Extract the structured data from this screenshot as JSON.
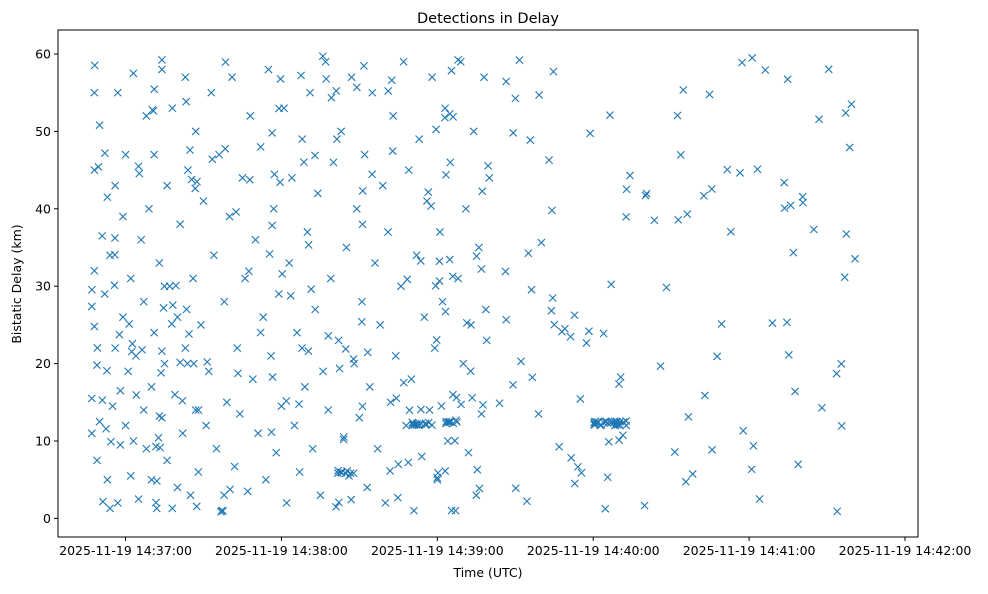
{
  "chart_data": {
    "type": "scatter",
    "title": "Detections in Delay",
    "xlabel": "Time (UTC)",
    "ylabel": "Bistatic Delay (km)",
    "x_unit": "seconds after 2025-11-19 14:36:00 UTC",
    "xlim": [
      34,
      365
    ],
    "ylim": [
      -2.4,
      63.1
    ],
    "xticks": [
      60,
      120,
      180,
      240,
      300,
      360
    ],
    "xtick_labels": [
      "2025-11-19 14:37:00",
      "2025-11-19 14:38:00",
      "2025-11-19 14:39:00",
      "2025-11-19 14:40:00",
      "2025-11-19 14:41:00",
      "2025-11-19 14:42:00"
    ],
    "yticks": [
      0,
      10,
      20,
      30,
      40,
      50,
      60
    ],
    "ytick_labels": [
      "0",
      "10",
      "20",
      "30",
      "40",
      "50",
      "60"
    ],
    "grid": false,
    "marker": "x",
    "color": "#1f77b4",
    "points": [
      [
        47,
        11
      ],
      [
        47,
        15.5
      ],
      [
        48,
        24.8
      ],
      [
        48,
        32
      ],
      [
        48,
        45
      ],
      [
        48,
        55
      ],
      [
        49,
        7.5
      ],
      [
        49,
        19.8
      ],
      [
        50,
        12.5
      ],
      [
        50,
        50.8
      ],
      [
        51,
        36.5
      ],
      [
        52,
        29
      ],
      [
        53,
        41.5
      ],
      [
        53,
        5
      ],
      [
        54,
        1.3
      ],
      [
        54,
        34
      ],
      [
        55,
        14.5
      ],
      [
        56,
        43
      ],
      [
        56,
        22
      ],
      [
        57,
        2
      ],
      [
        57,
        55
      ],
      [
        58,
        16.5
      ],
      [
        58,
        9.5
      ],
      [
        59,
        39
      ],
      [
        59,
        26
      ],
      [
        60,
        47
      ],
      [
        60,
        12
      ],
      [
        61,
        19
      ],
      [
        62,
        31
      ],
      [
        62,
        5.5
      ],
      [
        63,
        57.5
      ],
      [
        63,
        10
      ],
      [
        64,
        21
      ],
      [
        65,
        45.5
      ],
      [
        65,
        2.5
      ],
      [
        66,
        36
      ],
      [
        67,
        28
      ],
      [
        67,
        14
      ],
      [
        68,
        52
      ],
      [
        68,
        9
      ],
      [
        69,
        40
      ],
      [
        70,
        17
      ],
      [
        70,
        5
      ],
      [
        71,
        24
      ],
      [
        71,
        47
      ],
      [
        72,
        1.3
      ],
      [
        73,
        33
      ],
      [
        74,
        58
      ],
      [
        74,
        13
      ],
      [
        75,
        20
      ],
      [
        76,
        43
      ],
      [
        76,
        7.5
      ],
      [
        77,
        30
      ],
      [
        78,
        1.3
      ],
      [
        78,
        53
      ],
      [
        79,
        16
      ],
      [
        80,
        26
      ],
      [
        80,
        4
      ],
      [
        81,
        38
      ],
      [
        82,
        11
      ],
      [
        83,
        57
      ],
      [
        83,
        22
      ],
      [
        84,
        45
      ],
      [
        85,
        3
      ],
      [
        86,
        31
      ],
      [
        87,
        14
      ],
      [
        87,
        50
      ],
      [
        88,
        6
      ],
      [
        89,
        25
      ],
      [
        90,
        41
      ],
      [
        91,
        12
      ],
      [
        92,
        19
      ],
      [
        93,
        55
      ],
      [
        94,
        34
      ],
      [
        95,
        9
      ],
      [
        96,
        47
      ],
      [
        97,
        1
      ],
      [
        98,
        28
      ],
      [
        99,
        15
      ],
      [
        100,
        39
      ],
      [
        101,
        57
      ],
      [
        102,
        6.7
      ],
      [
        103,
        22
      ],
      [
        104,
        13.5
      ],
      [
        105,
        44
      ],
      [
        106,
        31
      ],
      [
        107,
        3.5
      ],
      [
        108,
        52
      ],
      [
        109,
        18
      ],
      [
        110,
        36
      ],
      [
        111,
        11
      ],
      [
        112,
        48
      ],
      [
        113,
        26
      ],
      [
        114,
        5
      ],
      [
        115,
        58
      ],
      [
        116,
        21
      ],
      [
        117,
        40
      ],
      [
        118,
        8.5
      ],
      [
        119,
        29
      ],
      [
        120,
        14.5
      ],
      [
        121,
        53
      ],
      [
        122,
        2
      ],
      [
        123,
        33
      ],
      [
        124,
        44
      ],
      [
        125,
        12
      ],
      [
        126,
        24
      ],
      [
        127,
        6
      ],
      [
        128,
        49
      ],
      [
        129,
        17
      ],
      [
        130,
        37
      ],
      [
        131,
        55
      ],
      [
        132,
        9
      ],
      [
        133,
        27
      ],
      [
        134,
        42
      ],
      [
        135,
        3
      ],
      [
        136,
        19
      ],
      [
        137,
        59
      ],
      [
        138,
        14
      ],
      [
        139,
        31
      ],
      [
        140,
        46
      ],
      [
        141,
        1.5
      ],
      [
        142,
        23
      ],
      [
        143,
        50
      ],
      [
        144,
        10.5
      ],
      [
        145,
        35
      ],
      [
        146,
        5.5
      ],
      [
        147,
        57
      ],
      [
        148,
        20
      ],
      [
        149,
        40
      ],
      [
        150,
        13
      ],
      [
        151,
        28
      ],
      [
        152,
        47
      ],
      [
        153,
        4
      ],
      [
        154,
        17
      ],
      [
        155,
        55
      ],
      [
        156,
        33
      ],
      [
        157,
        9
      ],
      [
        158,
        25
      ],
      [
        159,
        43
      ],
      [
        160,
        2
      ],
      [
        161,
        37
      ],
      [
        162,
        15
      ],
      [
        163,
        52
      ],
      [
        164,
        21
      ],
      [
        165,
        7
      ],
      [
        166,
        30
      ],
      [
        167,
        59
      ],
      [
        168,
        12
      ],
      [
        169,
        45
      ],
      [
        170,
        18
      ],
      [
        171,
        1
      ],
      [
        172,
        34
      ],
      [
        173,
        49
      ],
      [
        174,
        8
      ],
      [
        175,
        26
      ],
      [
        176,
        41
      ],
      [
        177,
        14
      ],
      [
        178,
        57
      ],
      [
        179,
        22
      ],
      [
        180,
        5
      ],
      [
        181,
        37
      ],
      [
        182,
        28
      ],
      [
        183,
        53
      ],
      [
        184,
        10
      ],
      [
        185,
        46
      ],
      [
        186,
        16
      ],
      [
        187,
        1
      ],
      [
        188,
        31
      ],
      [
        189,
        59
      ],
      [
        190,
        20
      ],
      [
        191,
        40
      ],
      [
        192,
        8.5
      ],
      [
        193,
        25
      ],
      [
        194,
        50
      ],
      [
        195,
        3
      ],
      [
        196,
        35
      ],
      [
        197,
        13.5
      ],
      [
        198,
        57
      ],
      [
        199,
        23
      ],
      [
        200,
        44
      ]
    ]
  }
}
